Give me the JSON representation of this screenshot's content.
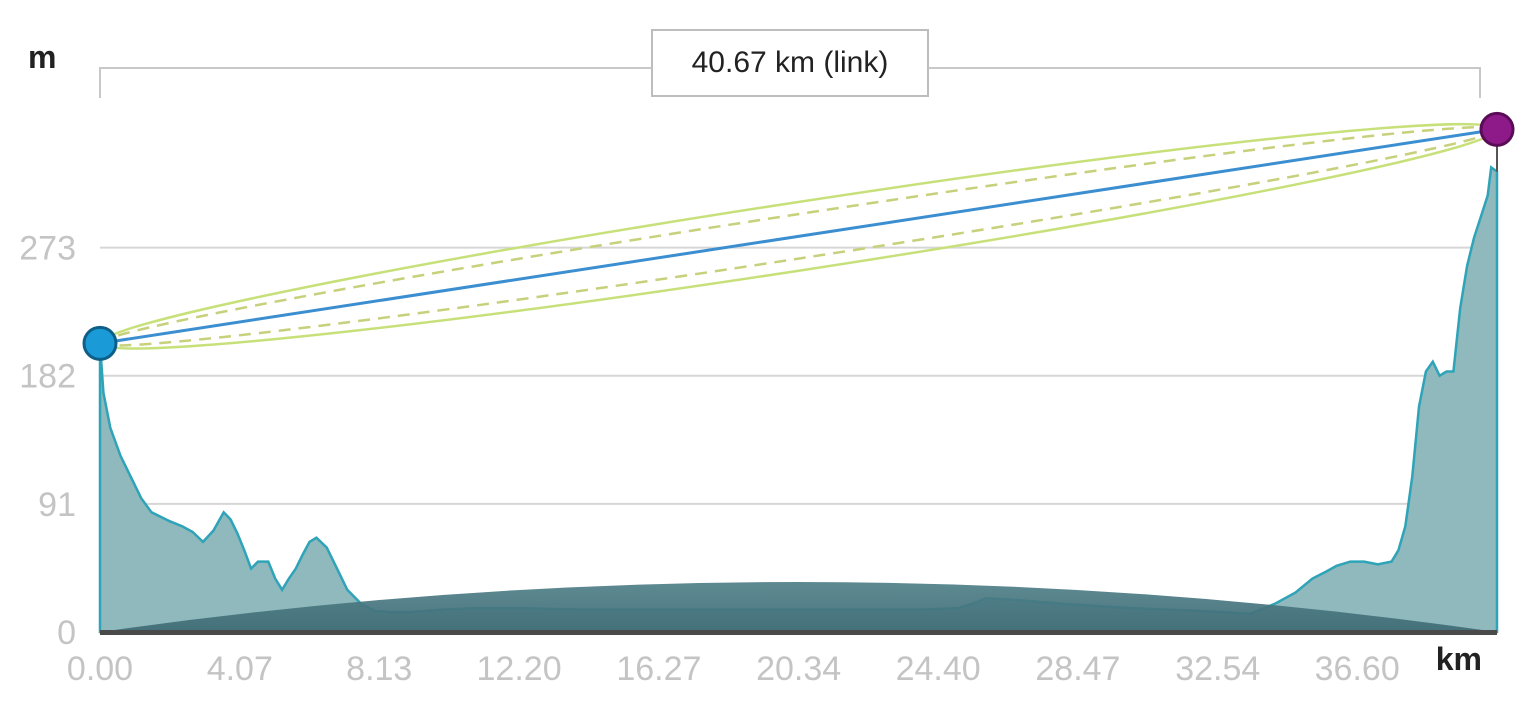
{
  "chart_data": {
    "type": "area",
    "ylabel": "m",
    "xlabel": "km",
    "link_label": "40.67 km (link)",
    "y_ticks": [
      "0",
      "91",
      "182",
      "273"
    ],
    "x_ticks": [
      "0.00",
      "4.07",
      "8.13",
      "12.20",
      "16.27",
      "20.34",
      "24.40",
      "28.47",
      "32.54",
      "36.60"
    ],
    "xlim": [
      0,
      40.67
    ],
    "ylim": [
      0,
      340
    ],
    "grid": true,
    "link": {
      "start": {
        "distance_km": 0,
        "elevation_m": 205
      },
      "end": {
        "distance_km": 40.67,
        "elevation_m": 357
      }
    },
    "series": [
      {
        "x": [
          0,
          0.1,
          0.3,
          0.6,
          0.9,
          1.2,
          1.5,
          2.0,
          2.4,
          2.7,
          3.0,
          3.3,
          3.6,
          3.8,
          4.0,
          4.2,
          4.4,
          4.6,
          4.9,
          5.1,
          5.3,
          5.5,
          5.7,
          5.9,
          6.1,
          6.3,
          6.6,
          6.9,
          7.2,
          7.6,
          8.0,
          8.5,
          9.0,
          9.5,
          10.0,
          11.0,
          12.0,
          14.0,
          16.0,
          18.0,
          20.0,
          22.0,
          24.0,
          25.0,
          25.4,
          25.8,
          26.5,
          28.0,
          30.0,
          32.0,
          33.5,
          34.2,
          34.8,
          35.3,
          35.7,
          36.0,
          36.4,
          36.8,
          37.2,
          37.6,
          37.8,
          38.0,
          38.2,
          38.4,
          38.6,
          38.8,
          39.0,
          39.2,
          39.4,
          39.6,
          39.8,
          40.0,
          40.2,
          40.4,
          40.5,
          40.67
        ],
        "values": [
          205,
          170,
          145,
          125,
          110,
          95,
          85,
          79,
          75,
          71,
          64,
          72,
          85,
          80,
          70,
          58,
          45,
          50,
          50,
          38,
          30,
          38,
          45,
          55,
          64,
          67,
          60,
          45,
          30,
          20,
          15,
          14,
          14,
          15,
          16,
          17,
          17,
          16,
          16,
          16,
          16,
          16,
          16,
          17,
          20,
          24,
          23,
          20,
          17,
          15,
          13,
          20,
          28,
          38,
          43,
          47,
          50,
          50,
          48,
          50,
          58,
          75,
          110,
          160,
          185,
          192,
          182,
          185,
          185,
          230,
          260,
          280,
          295,
          310,
          330,
          327
        ]
      }
    ]
  }
}
